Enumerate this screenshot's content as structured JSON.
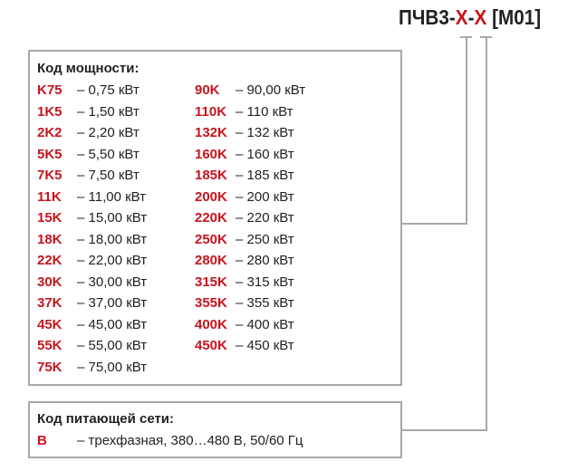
{
  "title": {
    "prefix": "ПЧВ3-",
    "x1": "X",
    "sep": "-",
    "x2": "X",
    "suffix": " [M01]"
  },
  "power": {
    "header": "Код мощности:",
    "left": [
      {
        "code": "K75",
        "desc": "– 0,75 кВт"
      },
      {
        "code": "1K5",
        "desc": "– 1,50 кВт"
      },
      {
        "code": "2K2",
        "desc": "– 2,20 кВт"
      },
      {
        "code": "5K5",
        "desc": "– 5,50 кВт"
      },
      {
        "code": "7K5",
        "desc": "– 7,50 кВт"
      },
      {
        "code": "11K",
        "desc": "– 11,00 кВт"
      },
      {
        "code": "15K",
        "desc": "– 15,00 кВт"
      },
      {
        "code": "18K",
        "desc": "– 18,00 кВт"
      },
      {
        "code": "22K",
        "desc": "– 22,00 кВт"
      },
      {
        "code": "30K",
        "desc": "– 30,00 кВт"
      },
      {
        "code": "37K",
        "desc": "– 37,00 кВт"
      },
      {
        "code": "45K",
        "desc": "– 45,00 кВт"
      },
      {
        "code": "55K",
        "desc": "– 55,00 кВт"
      },
      {
        "code": "75K",
        "desc": "– 75,00 кВт"
      }
    ],
    "right": [
      {
        "code": "90K",
        "desc": "– 90,00 кВт"
      },
      {
        "code": "110K",
        "desc": "– 110 кВт"
      },
      {
        "code": "132K",
        "desc": "– 132 кВт"
      },
      {
        "code": "160K",
        "desc": "– 160 кВт"
      },
      {
        "code": "185K",
        "desc": "– 185 кВт"
      },
      {
        "code": "200K",
        "desc": "– 200 кВт"
      },
      {
        "code": "220K",
        "desc": "– 220 кВт"
      },
      {
        "code": "250K",
        "desc": "– 250 кВт"
      },
      {
        "code": "280K",
        "desc": "– 280 кВт"
      },
      {
        "code": "315K",
        "desc": "– 315 кВт"
      },
      {
        "code": "355K",
        "desc": "– 355 кВт"
      },
      {
        "code": "400K",
        "desc": "– 400 кВт"
      },
      {
        "code": "450K",
        "desc": "– 450 кВт"
      }
    ]
  },
  "network": {
    "header": "Код питающей сети:",
    "items": [
      {
        "code": "B",
        "desc": "– трехфазная, 380…480 В, 50/60 Гц"
      }
    ]
  },
  "colors": {
    "accent": "#c8141e",
    "border": "#a8a8a8"
  }
}
